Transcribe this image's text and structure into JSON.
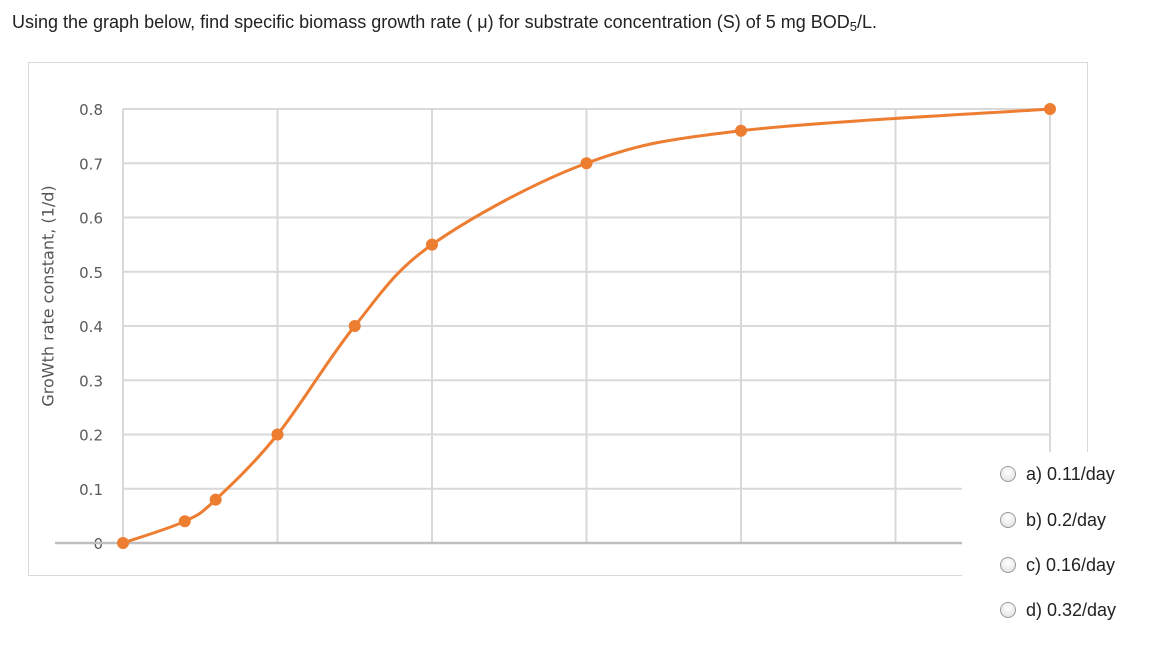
{
  "question": {
    "text": "Using the graph below, find specific biomass growth rate ( μ) for substrate concentration (S) of 5 mg BOD",
    "subscript": "5",
    "suffix": "/L."
  },
  "chart_data": {
    "type": "line",
    "ylabel": "GroWth rate constant, (1/d)",
    "ylim": [
      0,
      0.8
    ],
    "yticks": [
      "0",
      "0.1",
      "0.2",
      "0.3",
      "0.4",
      "0.5",
      "0.6",
      "0.7",
      "0.8"
    ],
    "xlim": [
      0,
      30
    ],
    "x_gridlines": [
      0,
      5,
      10,
      15,
      20,
      25,
      30
    ],
    "grid": true,
    "line_color": "#ed7d31",
    "x": [
      0,
      2,
      3,
      5,
      7.5,
      10,
      15,
      20,
      30
    ],
    "y": [
      0,
      0.04,
      0.08,
      0.2,
      0.4,
      0.55,
      0.7,
      0.76,
      0.8
    ]
  },
  "options": [
    {
      "id": "a",
      "label": "a) 0.11/day"
    },
    {
      "id": "b",
      "label": "b) 0.2/day"
    },
    {
      "id": "c",
      "label": "c) 0.16/day"
    },
    {
      "id": "d",
      "label": "d) 0.32/day"
    }
  ]
}
